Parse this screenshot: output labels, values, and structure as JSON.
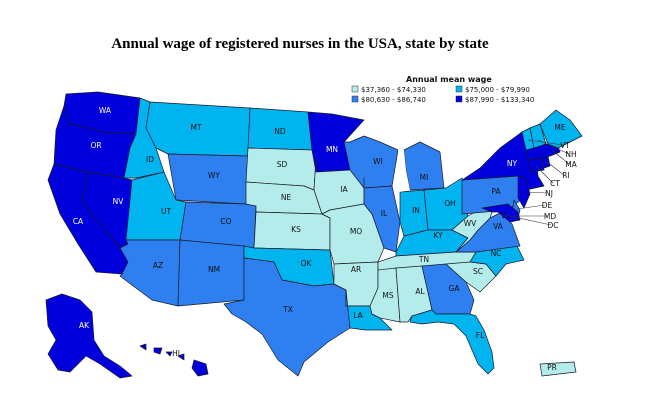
{
  "title": "Annual wage of registered nurses in the USA, state by state",
  "legend": {
    "title": "Annual mean wage",
    "classes": [
      {
        "label": "$37,360 - $74,330",
        "color": "#b4ecec"
      },
      {
        "label": "$75,000 - $79,990",
        "color": "#00b4f0"
      },
      {
        "label": "$80,630 - $86,740",
        "color": "#2e7ff0"
      },
      {
        "label": "$87,990 - $133,340",
        "color": "#0000dc"
      }
    ]
  },
  "states": {
    "WA": 3,
    "OR": 3,
    "CA": 3,
    "NV": 3,
    "ID": 1,
    "MT": 1,
    "WY": 2,
    "UT": 1,
    "CO": 2,
    "AZ": 2,
    "NM": 2,
    "ND": 1,
    "SD": 0,
    "NE": 0,
    "KS": 0,
    "OK": 1,
    "TX": 2,
    "MN": 3,
    "IA": 0,
    "MO": 0,
    "AR": 0,
    "LA": 1,
    "WI": 2,
    "IL": 2,
    "MI": 2,
    "IN": 1,
    "OH": 1,
    "KY": 1,
    "TN": 0,
    "MS": 0,
    "AL": 0,
    "GA": 2,
    "FL": 1,
    "SC": 0,
    "NC": 1,
    "VA": 2,
    "WV": 0,
    "PA": 2,
    "NY": 3,
    "ME": 1,
    "VT": 1,
    "NH": 1,
    "MA": 3,
    "RI": 3,
    "CT": 3,
    "NJ": 3,
    "DE": 2,
    "MD": 3,
    "DC": 3,
    "AK": 3,
    "HI": 3,
    "PR": 0
  },
  "labels": {
    "WA": "WA",
    "OR": "OR",
    "CA": "CA",
    "NV": "NV",
    "ID": "ID",
    "MT": "MT",
    "WY": "WY",
    "UT": "UT",
    "CO": "CO",
    "AZ": "AZ",
    "NM": "NM",
    "ND": "ND",
    "SD": "SD",
    "NE": "NE",
    "KS": "KS",
    "OK": "OK",
    "TX": "TX",
    "MN": "MN",
    "IA": "IA",
    "MO": "MO",
    "AR": "AR",
    "LA": "LA",
    "WI": "WI",
    "IL": "IL",
    "MI": "MI",
    "IN": "IN",
    "OH": "OH",
    "KY": "KY",
    "TN": "TN",
    "MS": "MS",
    "AL": "AL",
    "GA": "GA",
    "FL": "FL",
    "SC": "SC",
    "NC": "NC",
    "VA": "VA",
    "WV": "WV",
    "PA": "PA",
    "NY": "NY",
    "ME": "ME",
    "VT": "VT",
    "NH": "NH",
    "MA": "MA",
    "RI": "RI",
    "CT": "CT",
    "NJ": "NJ",
    "DE": "DE",
    "MD": "MD",
    "DC": "DC",
    "AK": "AK",
    "HI": "HI",
    "PR": "PR"
  }
}
